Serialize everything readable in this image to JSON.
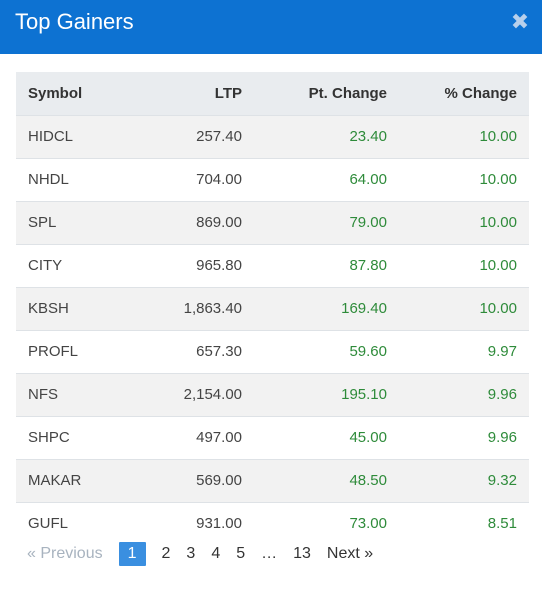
{
  "modal": {
    "title": "Top Gainers",
    "close_symbol": "✖"
  },
  "table": {
    "headers": {
      "symbol": "Symbol",
      "ltp": "LTP",
      "pt_change": "Pt. Change",
      "pct_change": "% Change"
    },
    "rows": [
      {
        "symbol": "HIDCL",
        "ltp": "257.40",
        "pt_change": "23.40",
        "pct_change": "10.00"
      },
      {
        "symbol": "NHDL",
        "ltp": "704.00",
        "pt_change": "64.00",
        "pct_change": "10.00"
      },
      {
        "symbol": "SPL",
        "ltp": "869.00",
        "pt_change": "79.00",
        "pct_change": "10.00"
      },
      {
        "symbol": "CITY",
        "ltp": "965.80",
        "pt_change": "87.80",
        "pct_change": "10.00"
      },
      {
        "symbol": "KBSH",
        "ltp": "1,863.40",
        "pt_change": "169.40",
        "pct_change": "10.00"
      },
      {
        "symbol": "PROFL",
        "ltp": "657.30",
        "pt_change": "59.60",
        "pct_change": "9.97"
      },
      {
        "symbol": "NFS",
        "ltp": "2,154.00",
        "pt_change": "195.10",
        "pct_change": "9.96"
      },
      {
        "symbol": "SHPC",
        "ltp": "497.00",
        "pt_change": "45.00",
        "pct_change": "9.96"
      },
      {
        "symbol": "MAKAR",
        "ltp": "569.00",
        "pt_change": "48.50",
        "pct_change": "9.32"
      },
      {
        "symbol": "GUFL",
        "ltp": "931.00",
        "pt_change": "73.00",
        "pct_change": "8.51"
      }
    ]
  },
  "pagination": {
    "previous": "« Previous",
    "pages": [
      "1",
      "2",
      "3",
      "4",
      "5"
    ],
    "ellipsis": "…",
    "last": "13",
    "next": "Next »",
    "current": "1"
  },
  "colors": {
    "header_bg": "#0d72d2",
    "positive": "#2e8b3a",
    "active_page": "#3a8fe0"
  }
}
